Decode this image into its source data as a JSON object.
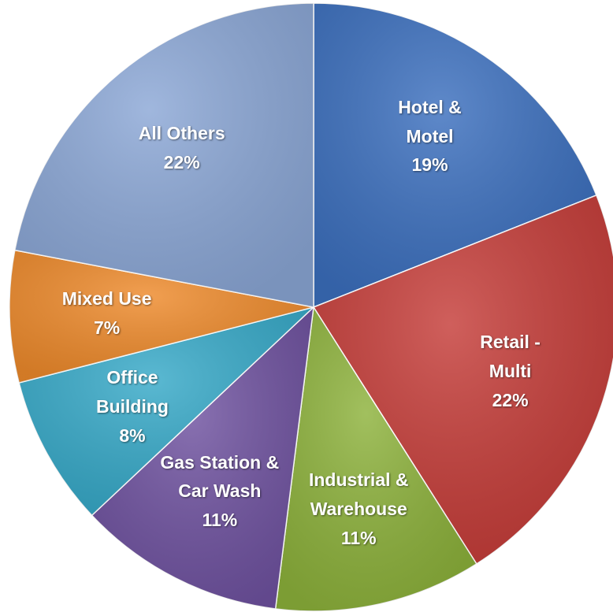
{
  "chart_data": {
    "type": "pie",
    "categories": [
      "Hotel & Motel",
      "Retail - Multi",
      "Industrial & Warehouse",
      "Gas Station & Car Wash",
      "Office Building",
      "Mixed Use",
      "All Others"
    ],
    "values": [
      19,
      22,
      11,
      11,
      8,
      7,
      22
    ],
    "value_labels": [
      "19%",
      "22%",
      "11%",
      "11%",
      "8%",
      "7%",
      "22%"
    ],
    "colors": [
      "#3b6fbe",
      "#c53c38",
      "#8db23b",
      "#6f52a0",
      "#36a9c8",
      "#ee8a2b",
      "#8ba7d6"
    ]
  }
}
